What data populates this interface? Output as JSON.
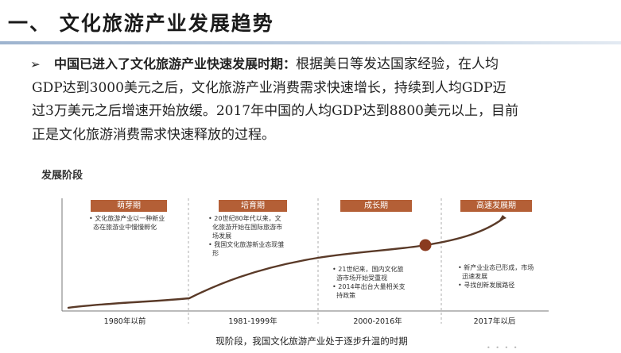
{
  "heading": "一、 文化旅游产业发展趋势",
  "bullet_glyph": "➢",
  "paragraph": {
    "lead": "中国已进入了文化旅游产业快速发展时期：",
    "line1": "根据美日等发达国家经验，在人均",
    "line2": "GDP达到3000美元之后，文化旅游产业消费需求快速增长，持续到人均GDP迈",
    "line3": "过3万美元之后增速开始放缓。2017年中国的人均GDP达到8800美元以上，目前",
    "line4": "正是文化旅游消费需求快速释放的过程。"
  },
  "figure": {
    "stage_label": "发展阶段",
    "accent_color": "#b45f36",
    "curve_color": "#5a3a28",
    "phases": [
      {
        "name": "萌芽期",
        "notes": [
          "• 文化旅游产业以一种新业",
          "  态在旅游业中慢慢孵化"
        ],
        "years": "1980年以前"
      },
      {
        "name": "培育期",
        "notes": [
          "• 20世纪80年代以来，文",
          "  化旅游开始在国际旅游市",
          "  场发展",
          "• 我国文化旅游新业态现雏",
          "  形"
        ],
        "years": "1981-1999年"
      },
      {
        "name": "成长期",
        "notes": [
          "• 21世纪来，国内文化旅",
          "  游市场开始受重视",
          "• 2014年出台大量相关支",
          "  持政策"
        ],
        "years": "2000-2016年"
      },
      {
        "name": "高速发展期",
        "notes": [
          "• 新产业业态已形成，市场",
          "  迅速发展",
          "• 寻找创新发展路径"
        ],
        "years": "2017年以后"
      }
    ],
    "current_caption": "现阶段，我国文化旅游产业处于逐步升温的时期",
    "page_marker": "• • • •"
  }
}
